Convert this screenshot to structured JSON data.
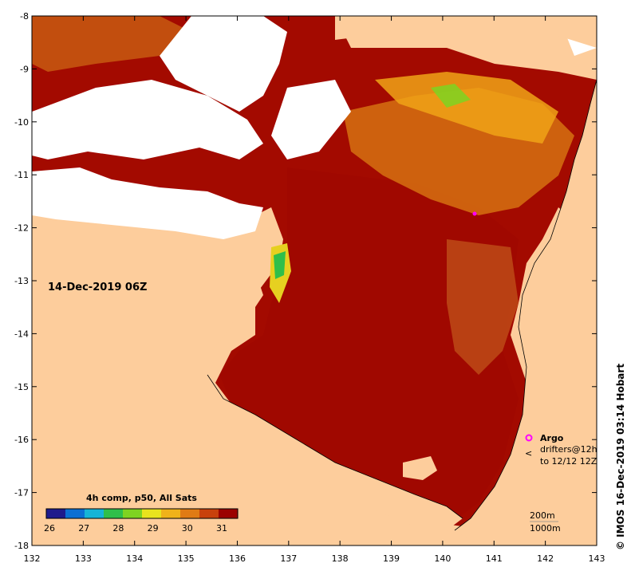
{
  "map": {
    "title": "14-Dec-2019 06Z",
    "colorbar_title": "4h comp, p50, All Sats",
    "colorbar_ticks": [
      "26",
      "27",
      "28",
      "29",
      "30",
      "31"
    ],
    "colorbar_colors": [
      "#1e1a8c",
      "#0b6fd3",
      "#16b4d7",
      "#2fbf4a",
      "#7ed321",
      "#e8e31e",
      "#f0b21a",
      "#e07b14",
      "#c8410c",
      "#9b0000"
    ],
    "x_ticks": [
      "132",
      "133",
      "134",
      "135",
      "136",
      "137",
      "138",
      "139",
      "140",
      "141",
      "142",
      "143"
    ],
    "y_ticks": [
      "-8",
      "-9",
      "-10",
      "-11",
      "-12",
      "-13",
      "-14",
      "-15",
      "-16",
      "-17",
      "-18"
    ],
    "legend": {
      "argo_label": "Argo",
      "drifters_label_line1": "drifters@12h",
      "drifters_label_line2": "to 12/12 12Z",
      "depth_200": "200m",
      "depth_1000": "1000m"
    },
    "credit": "© IMOS 16-Dec-2019 03:14 Hobart",
    "colors": {
      "land": "#fdcd9c",
      "warm_sea": "#a00800",
      "cloud": "#ffffff",
      "argo": "#ff00ff"
    }
  }
}
